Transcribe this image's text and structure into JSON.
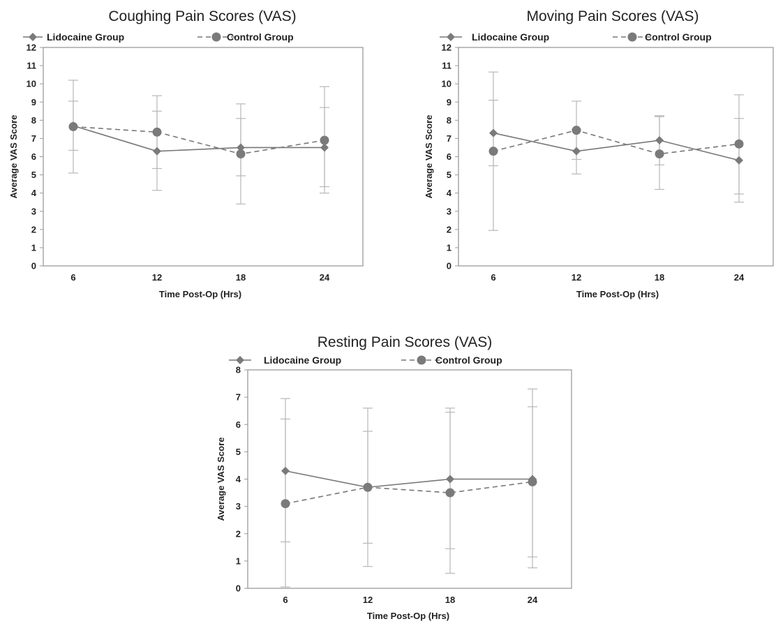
{
  "chart_data": [
    {
      "type": "line",
      "title": "Coughing Pain Scores (VAS)",
      "xlabel": "Time Post-Op (Hrs)",
      "ylabel": "Average VAS Score",
      "categories": [
        "6",
        "12",
        "18",
        "24"
      ],
      "ylim": [
        0,
        12
      ],
      "yticks": [
        0,
        1,
        2,
        3,
        4,
        5,
        6,
        7,
        8,
        9,
        10,
        11,
        12
      ],
      "grid": false,
      "legend": "top",
      "series": [
        {
          "name": "Lidocaine Group",
          "marker": "diamond",
          "line": "solid",
          "color": "#777777",
          "values": [
            7.7,
            6.3,
            6.5,
            6.5
          ],
          "err_low": [
            6.35,
            5.35,
            4.95,
            4.35
          ],
          "err_high": [
            9.05,
            8.5,
            8.1,
            8.7
          ]
        },
        {
          "name": "Control Group",
          "marker": "circle",
          "line": "dashed",
          "color": "#777777",
          "values": [
            7.65,
            7.35,
            6.15,
            6.9
          ],
          "err_low": [
            5.1,
            4.15,
            3.4,
            4.0
          ],
          "err_high": [
            10.2,
            9.35,
            8.9,
            9.85
          ]
        }
      ]
    },
    {
      "type": "line",
      "title": "Moving Pain Scores (VAS)",
      "xlabel": "Time Post-Op (Hrs)",
      "ylabel": "Average VAS Score",
      "categories": [
        "6",
        "12",
        "18",
        "24"
      ],
      "ylim": [
        0,
        12
      ],
      "yticks": [
        0,
        1,
        2,
        3,
        4,
        5,
        6,
        7,
        8,
        9,
        10,
        11,
        12
      ],
      "grid": false,
      "legend": "top",
      "series": [
        {
          "name": "Lidocaine Group",
          "marker": "diamond",
          "line": "solid",
          "color": "#777777",
          "values": [
            7.3,
            6.3,
            6.9,
            5.8
          ],
          "err_low": [
            5.5,
            5.05,
            5.55,
            3.5
          ],
          "err_high": [
            9.1,
            7.5,
            8.2,
            8.1
          ]
        },
        {
          "name": "Control Group",
          "marker": "circle",
          "line": "dashed",
          "color": "#777777",
          "values": [
            6.3,
            7.45,
            6.15,
            6.7
          ],
          "err_low": [
            1.95,
            5.85,
            4.2,
            3.95
          ],
          "err_high": [
            10.65,
            9.05,
            8.25,
            9.4
          ]
        }
      ]
    },
    {
      "type": "line",
      "title": "Resting Pain Scores (VAS)",
      "xlabel": "Time Post-Op (Hrs)",
      "ylabel": "Average VAS Score",
      "categories": [
        "6",
        "12",
        "18",
        "24"
      ],
      "ylim": [
        0,
        8
      ],
      "yticks": [
        0,
        1,
        2,
        3,
        4,
        5,
        6,
        7,
        8
      ],
      "grid": false,
      "legend": "top",
      "series": [
        {
          "name": "Lidocaine Group",
          "marker": "diamond",
          "line": "solid",
          "color": "#777777",
          "values": [
            4.3,
            3.7,
            4.0,
            4.0
          ],
          "err_low": [
            1.7,
            1.65,
            1.45,
            0.75
          ],
          "err_high": [
            6.95,
            5.75,
            6.6,
            7.3
          ]
        },
        {
          "name": "Control Group",
          "marker": "circle",
          "line": "dashed",
          "color": "#777777",
          "values": [
            3.1,
            3.7,
            3.5,
            3.9
          ],
          "err_low": [
            0.05,
            0.8,
            0.55,
            1.15
          ],
          "err_high": [
            6.2,
            6.6,
            6.45,
            6.65
          ]
        }
      ]
    }
  ]
}
